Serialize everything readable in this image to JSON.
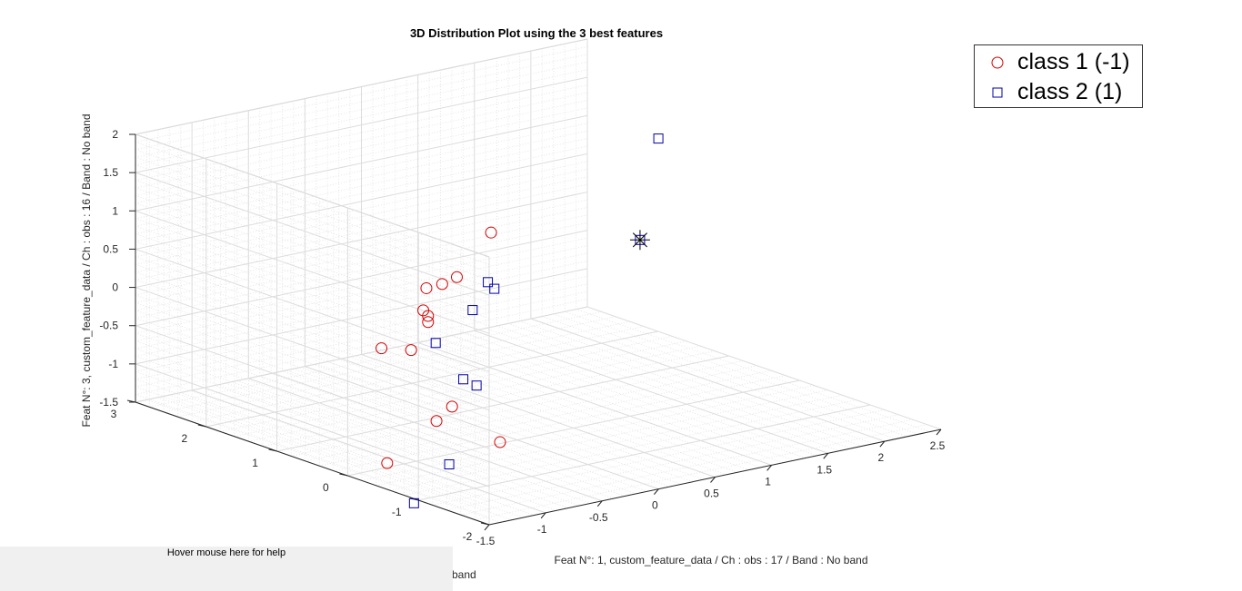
{
  "chart_data": {
    "type": "scatter3d",
    "title": "3D Distribution Plot using the 3 best features",
    "xlabel": "Feat N°: 1, custom_feature_data / Ch : obs : 17 / Band :  No band",
    "ylabel_partial": "band",
    "zlabel": "Feat N°: 3, custom_feature_data / Ch : obs : 16 / Band : No band",
    "xlim": [
      -1.5,
      2.5
    ],
    "ylim": [
      -2,
      3
    ],
    "zlim": [
      -1.5,
      2
    ],
    "xticks": [
      "-1.5",
      "-1",
      "-0.5",
      "0",
      "0.5",
      "1",
      "1.5",
      "2",
      "2.5"
    ],
    "yticks": [
      "-2",
      "-1",
      "0",
      "1",
      "2",
      "3"
    ],
    "zticks": [
      "-1.5",
      "-1",
      "-0.5",
      "0",
      "0.5",
      "1",
      "1.5",
      "2"
    ],
    "grid": true,
    "legend_position": "top-right",
    "series": [
      {
        "name": "class 1 (-1)",
        "marker": "circle",
        "color": "#d40000",
        "points": [
          [
            0.27,
            0.8,
            0.87
          ],
          [
            0.03,
            0.9,
            0.33
          ],
          [
            -0.1,
            0.9,
            0.28
          ],
          [
            -0.24,
            0.9,
            0.27
          ],
          [
            -0.33,
            0.8,
            0.04
          ],
          [
            -0.1,
            1.1,
            -0.2
          ],
          [
            -0.1,
            1.1,
            -0.28
          ],
          [
            -0.7,
            0.8,
            -0.34
          ],
          [
            -0.25,
            1.1,
            -0.6
          ],
          [
            0.05,
            1.0,
            -1.4
          ],
          [
            0.1,
            1.3,
            -1.7
          ],
          [
            -0.9,
            0.4,
            -1.65
          ],
          [
            0.6,
            1.2,
            -2.1
          ]
        ]
      },
      {
        "name": "class 2 (1)",
        "marker": "square",
        "color": "#0000aa",
        "points": [
          [
            1.25,
            0.0,
            2.05
          ],
          [
            0.9,
            -0.3,
            0.93
          ],
          [
            0.55,
            1.2,
            -0.08
          ],
          [
            0.68,
            1.5,
            -0.13
          ],
          [
            0.42,
            1.3,
            -0.35
          ],
          [
            -0.22,
            0.8,
            -0.42
          ],
          [
            0.4,
            1.4,
            -1.28
          ],
          [
            0.58,
            1.5,
            -1.45
          ],
          [
            -0.6,
            0.5,
            -2.3
          ],
          [
            0.15,
            1.2,
            -2.25
          ]
        ]
      }
    ],
    "highlighted_point": [
      0.9,
      -0.3,
      0.93
    ]
  },
  "help": {
    "text": "Hover mouse here for help"
  }
}
